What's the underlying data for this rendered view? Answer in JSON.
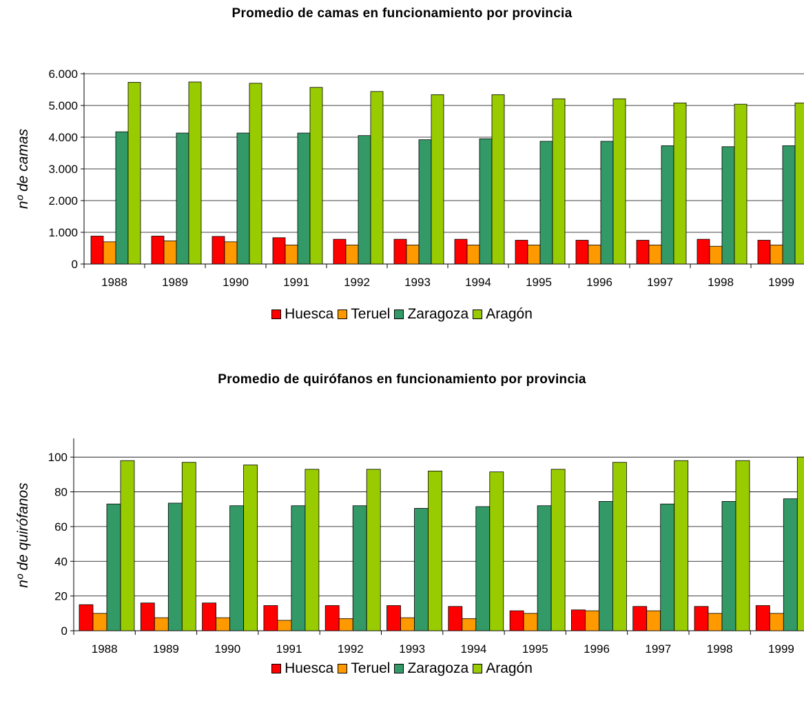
{
  "colors": {
    "Huesca": "#ff0000",
    "Teruel": "#ff9900",
    "Zaragoza": "#339966",
    "Aragón": "#99cc00"
  },
  "chart_data": [
    {
      "type": "bar",
      "title": "Promedio de camas en funcionamiento por provincia",
      "xlabel": "",
      "ylabel": "nº de camas",
      "ylim": [
        0,
        6000
      ],
      "yticks": [
        0,
        1000,
        2000,
        3000,
        4000,
        5000,
        6000
      ],
      "yticklabels": [
        "0",
        "1.000",
        "2.000",
        "3.000",
        "4.000",
        "5.000",
        "6.000"
      ],
      "grid": true,
      "legend_position": "bottom",
      "categories": [
        "1988",
        "1989",
        "1990",
        "1991",
        "1992",
        "1993",
        "1994",
        "1995",
        "1996",
        "1997",
        "1998",
        "1999"
      ],
      "series": [
        {
          "name": "Huesca",
          "values": [
            880,
            880,
            870,
            830,
            780,
            780,
            780,
            750,
            750,
            750,
            780,
            750
          ]
        },
        {
          "name": "Teruel",
          "values": [
            700,
            730,
            700,
            600,
            600,
            600,
            600,
            600,
            600,
            600,
            560,
            600
          ]
        },
        {
          "name": "Zaragoza",
          "values": [
            4170,
            4130,
            4130,
            4130,
            4050,
            3920,
            3950,
            3870,
            3870,
            3730,
            3700,
            3730
          ]
        },
        {
          "name": "Aragón",
          "values": [
            5730,
            5740,
            5700,
            5570,
            5440,
            5340,
            5340,
            5210,
            5210,
            5080,
            5040,
            5080
          ]
        }
      ]
    },
    {
      "type": "bar",
      "title": "Promedio de quirófanos en funcionamiento por provincia",
      "xlabel": "",
      "ylabel": "nº de quirófanos",
      "ylim": [
        0,
        110
      ],
      "yticks": [
        0,
        20,
        40,
        60,
        80,
        100
      ],
      "yticklabels": [
        "0",
        "20",
        "40",
        "60",
        "80",
        "100"
      ],
      "grid": true,
      "legend_position": "bottom",
      "categories": [
        "1988",
        "1989",
        "1990",
        "1991",
        "1992",
        "1993",
        "1994",
        "1995",
        "1996",
        "1997",
        "1998",
        "1999"
      ],
      "series": [
        {
          "name": "Huesca",
          "values": [
            15,
            16,
            16,
            14.5,
            14.5,
            14.5,
            14,
            11.5,
            12,
            14,
            14,
            14.5
          ]
        },
        {
          "name": "Teruel",
          "values": [
            10,
            7.5,
            7.5,
            6,
            7,
            7.5,
            7,
            10,
            11.5,
            11.5,
            10,
            10
          ]
        },
        {
          "name": "Zaragoza",
          "values": [
            73,
            73.5,
            72,
            72,
            72,
            70.5,
            71.5,
            72,
            74.5,
            73,
            74.5,
            76
          ]
        },
        {
          "name": "Aragón",
          "values": [
            98,
            97,
            95.5,
            93,
            93,
            92,
            91.5,
            93,
            97,
            98,
            98,
            100
          ]
        }
      ]
    }
  ]
}
